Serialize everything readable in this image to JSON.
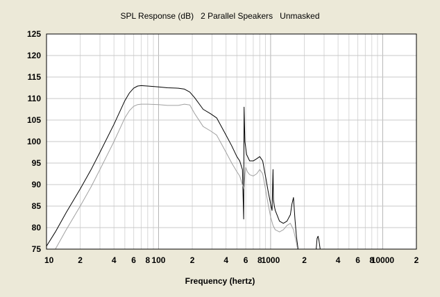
{
  "chart_data": {
    "type": "line",
    "title": "SPL Response (dB)   2 Parallel Speakers   Unmasked",
    "xlabel": "Frequency (hertz)",
    "ylabel": "",
    "xscale": "log",
    "xlim": [
      10,
      20000
    ],
    "ylim": [
      75,
      125
    ],
    "grid": true,
    "legend": "none",
    "y_ticks": [
      75,
      80,
      85,
      90,
      95,
      100,
      105,
      110,
      115,
      120,
      125
    ],
    "x_ticks": [
      {
        "value": 10,
        "label": "10"
      },
      {
        "value": 20,
        "label": "2"
      },
      {
        "value": 40,
        "label": "4"
      },
      {
        "value": 60,
        "label": "6"
      },
      {
        "value": 80,
        "label": "8"
      },
      {
        "value": 100,
        "label": "100"
      },
      {
        "value": 200,
        "label": "2"
      },
      {
        "value": 400,
        "label": "4"
      },
      {
        "value": 600,
        "label": "6"
      },
      {
        "value": 800,
        "label": "8"
      },
      {
        "value": 1000,
        "label": "1000"
      },
      {
        "value": 2000,
        "label": "2"
      },
      {
        "value": 4000,
        "label": "4"
      },
      {
        "value": 6000,
        "label": "6"
      },
      {
        "value": 8000,
        "label": "8"
      },
      {
        "value": 10000,
        "label": "10000"
      },
      {
        "value": 20000,
        "label": "2"
      }
    ],
    "series": [
      {
        "color": "#000000",
        "x": [
          10,
          12,
          15,
          20,
          25,
          30,
          40,
          50,
          55,
          60,
          65,
          70,
          80,
          100,
          120,
          150,
          170,
          190,
          210,
          250,
          290,
          330,
          400,
          450,
          500,
          530,
          560,
          575,
          580,
          590,
          610,
          650,
          700,
          750,
          800,
          850,
          900,
          950,
          1000,
          1030,
          1050,
          1060,
          1080,
          1100,
          1200,
          1300,
          1400,
          1500,
          1550,
          1600,
          1650,
          1700,
          1800
        ],
        "y": [
          75.7,
          79,
          83.5,
          89,
          93.5,
          97.5,
          104,
          109.5,
          111.3,
          112.4,
          112.9,
          113,
          112.9,
          112.7,
          112.5,
          112.4,
          112.2,
          111.5,
          110.2,
          107.5,
          106.5,
          105.5,
          101.5,
          99,
          96.5,
          95.5,
          93.5,
          82,
          108,
          100,
          97,
          95.5,
          95.5,
          96,
          96.5,
          95.5,
          92,
          88.5,
          85.5,
          84,
          93.5,
          86.5,
          85,
          84,
          81.5,
          81,
          81.5,
          83,
          85.5,
          87,
          82,
          78,
          73
        ]
      },
      {
        "color": "#000000",
        "x": [
          2550,
          2600,
          2650,
          2700,
          2750,
          2800
        ],
        "y": [
          75,
          77.5,
          78,
          77,
          75.5,
          74
        ]
      },
      {
        "color": "#a0a0a0",
        "x": [
          12,
          15,
          20,
          25,
          30,
          40,
          50,
          55,
          60,
          65,
          70,
          80,
          100,
          120,
          150,
          170,
          190,
          210,
          250,
          290,
          330,
          400,
          450,
          500,
          530,
          560,
          580,
          590,
          600,
          620,
          650,
          700,
          750,
          800,
          850,
          900,
          950,
          1000,
          1050,
          1100,
          1200,
          1300,
          1400,
          1500,
          1600,
          1700,
          1800
        ],
        "y": [
          75,
          79.5,
          85,
          89.5,
          93.5,
          100,
          105.5,
          107.2,
          108.2,
          108.6,
          108.7,
          108.7,
          108.6,
          108.4,
          108.4,
          108.7,
          108.5,
          106.5,
          103.5,
          102.5,
          101.5,
          97.5,
          95,
          93,
          92,
          90,
          89,
          92.5,
          94,
          93,
          92.3,
          92,
          92.5,
          93.5,
          92.5,
          89,
          85.5,
          82.5,
          80.5,
          79.5,
          79,
          79.5,
          80.5,
          81,
          79.5,
          76.5,
          73
        ]
      }
    ]
  }
}
